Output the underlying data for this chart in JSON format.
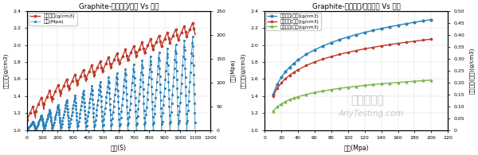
{
  "chart1": {
    "title": "Graphite-压实密度/压强 Vs 时间",
    "xlabel": "时间(S)",
    "ylabel_left": "压实密度(g/cm3)",
    "ylabel_right": "压强(Mpa)",
    "xlim": [
      0,
      1200
    ],
    "ylim_left": [
      1.0,
      2.4
    ],
    "ylim_right": [
      0,
      250
    ],
    "xticks": [
      0,
      100,
      200,
      300,
      400,
      500,
      600,
      700,
      800,
      900,
      1000,
      1100,
      1200
    ],
    "yticks_left": [
      1.0,
      1.2,
      1.4,
      1.6,
      1.8,
      2.0,
      2.2,
      2.4
    ],
    "yticks_right": [
      0,
      50,
      100,
      150,
      200,
      250
    ],
    "density_color": "#c0392b",
    "pressure_color": "#2980b9",
    "legend_density": "压实密度(g/cm3)",
    "legend_pressure": "压强(Mpa)"
  },
  "chart2": {
    "title": "Graphite-压实密度/压密反弹 Vs 压强",
    "xlabel": "压强(Mpa)",
    "ylabel_left": "压实密度(g/cm3)",
    "ylabel_right": "压密密度(反弹)(g/cm3)",
    "xlim": [
      0,
      220
    ],
    "ylim_left": [
      1.0,
      2.4
    ],
    "ylim_right": [
      0.0,
      0.5
    ],
    "xticks": [
      0,
      20,
      40,
      60,
      80,
      100,
      120,
      140,
      160,
      180,
      200,
      220
    ],
    "yticks_left": [
      1.0,
      1.2,
      1.4,
      1.6,
      1.8,
      2.0,
      2.2,
      2.4
    ],
    "yticks_right": [
      0.0,
      0.05,
      0.1,
      0.15,
      0.2,
      0.25,
      0.3,
      0.35,
      0.4,
      0.45,
      0.5
    ],
    "color_jiaya": "#2980b9",
    "color_jiey": "#c0392b",
    "color_fantan": "#7ab648",
    "legend_jiaya": "压实密度[加压](g/cm3)",
    "legend_jiey": "压实密度[卸压](g/cm3)",
    "legend_fantan": "压实密度[反弹](g/cm3)"
  }
}
